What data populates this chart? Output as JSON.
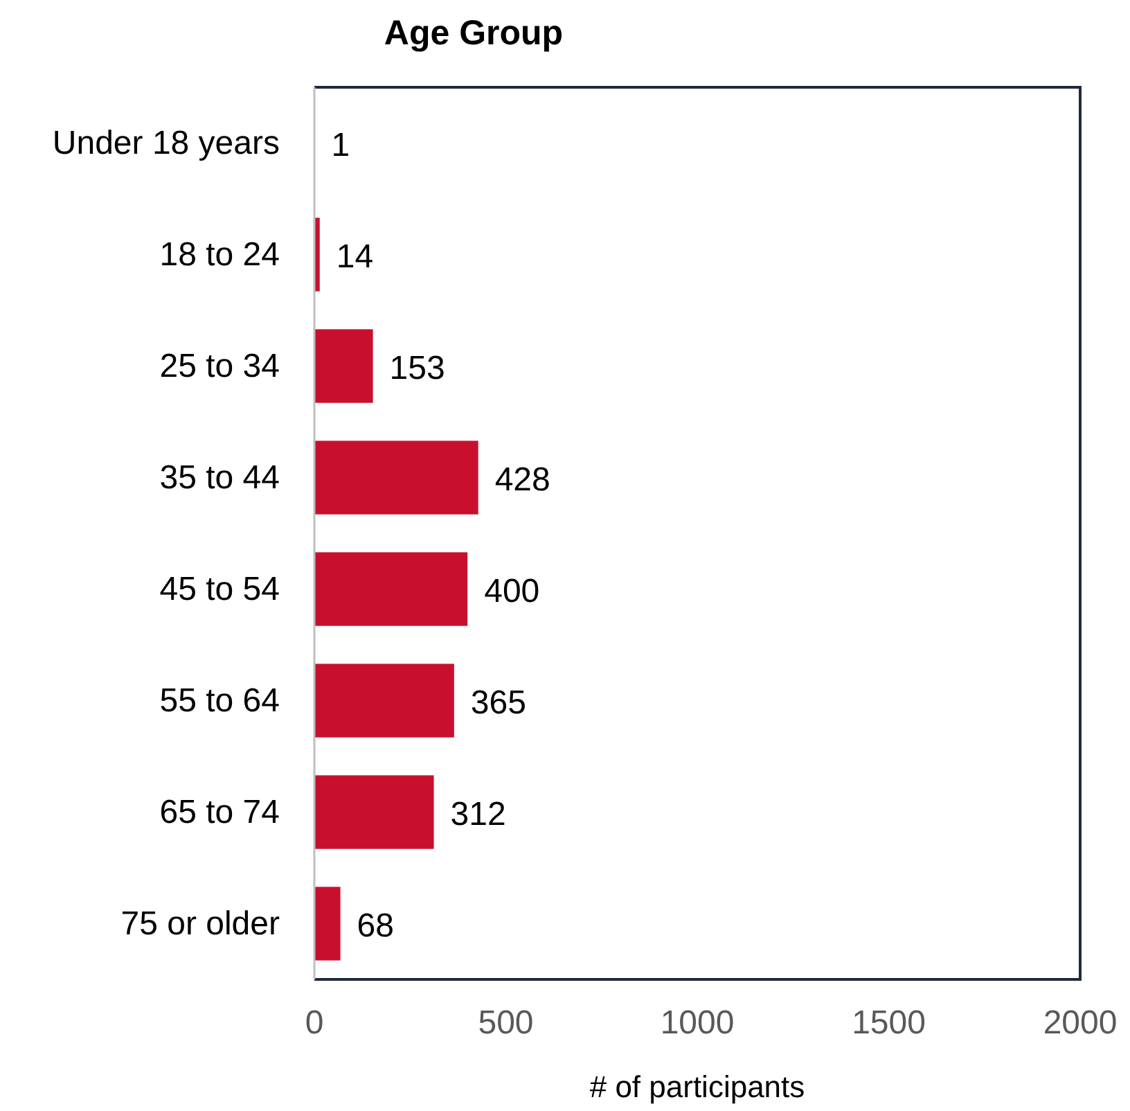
{
  "chart_data": {
    "type": "bar",
    "orientation": "horizontal",
    "title": "Age Group",
    "xlabel": "# of participants",
    "categories": [
      "Under 18 years",
      "18 to 24",
      "25 to 34",
      "35 to 44",
      "45 to 54",
      "55 to 64",
      "65 to 74",
      "75 or older"
    ],
    "values": [
      1,
      14,
      153,
      428,
      400,
      365,
      312,
      68
    ],
    "color": "#c8102e",
    "xlim": [
      0,
      2000
    ],
    "xticks": [
      0,
      500,
      1000,
      1500,
      2000
    ],
    "data_labels": true
  }
}
